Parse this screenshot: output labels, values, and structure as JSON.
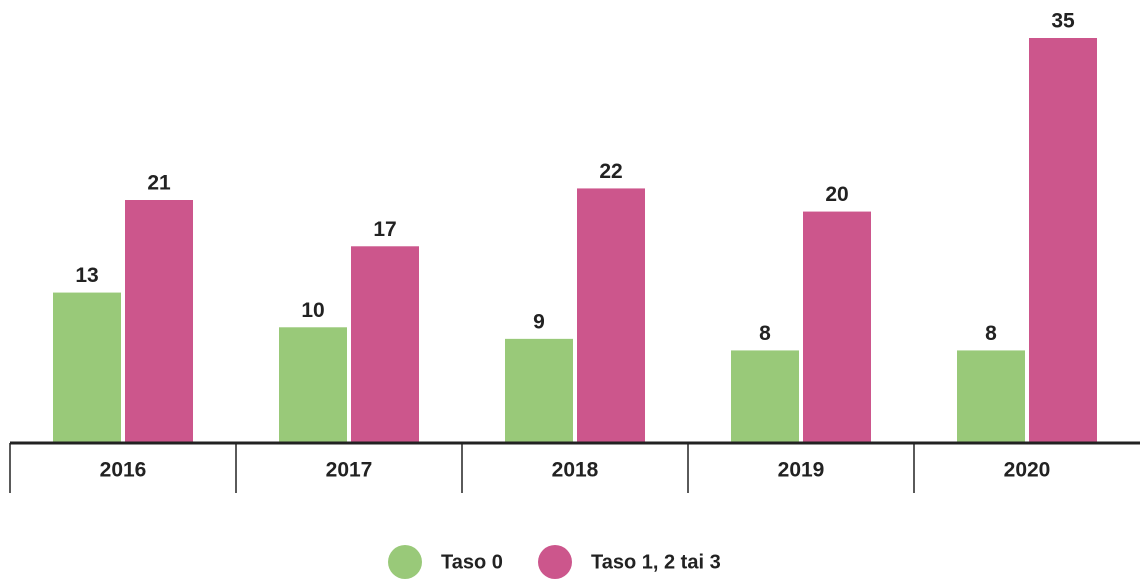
{
  "chart_data": {
    "type": "bar",
    "categories": [
      "2016",
      "2017",
      "2018",
      "2019",
      "2020"
    ],
    "series": [
      {
        "name": "Taso 0",
        "color": "#99c979",
        "values": [
          13,
          10,
          9,
          8,
          8
        ]
      },
      {
        "name": "Taso 1, 2 tai 3",
        "color": "#cc568c",
        "values": [
          21,
          17,
          22,
          20,
          35
        ]
      }
    ]
  }
}
